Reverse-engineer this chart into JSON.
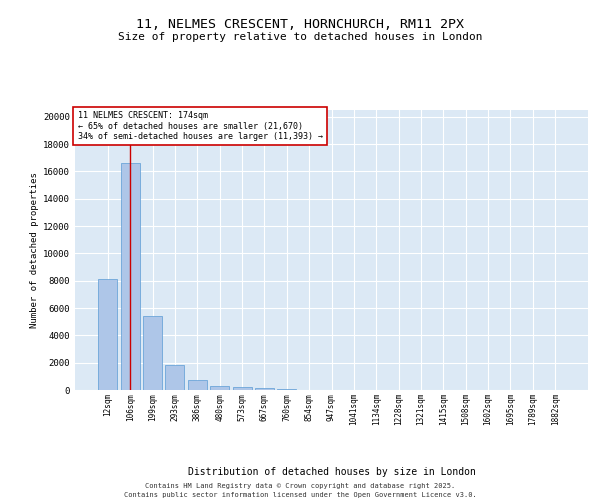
{
  "title_line1": "11, NELMES CRESCENT, HORNCHURCH, RM11 2PX",
  "title_line2": "Size of property relative to detached houses in London",
  "xlabel": "Distribution of detached houses by size in London",
  "ylabel": "Number of detached properties",
  "bar_color": "#aec6e8",
  "bar_edge_color": "#5b9bd5",
  "background_color": "#dce9f5",
  "grid_color": "#ffffff",
  "categories": [
    "12sqm",
    "106sqm",
    "199sqm",
    "293sqm",
    "386sqm",
    "480sqm",
    "573sqm",
    "667sqm",
    "760sqm",
    "854sqm",
    "947sqm",
    "1041sqm",
    "1134sqm",
    "1228sqm",
    "1321sqm",
    "1415sqm",
    "1508sqm",
    "1602sqm",
    "1695sqm",
    "1789sqm",
    "1882sqm"
  ],
  "values": [
    8100,
    16600,
    5400,
    1850,
    700,
    310,
    200,
    130,
    80,
    0,
    0,
    0,
    0,
    0,
    0,
    0,
    0,
    0,
    0,
    0,
    0
  ],
  "vline_x": 1.0,
  "vline_color": "#cc0000",
  "annotation_box": {
    "text_line1": "11 NELMES CRESCENT: 174sqm",
    "text_line2": "← 65% of detached houses are smaller (21,670)",
    "text_line3": "34% of semi-detached houses are larger (11,393) →",
    "box_color": "white",
    "border_color": "#cc0000"
  },
  "footer_line1": "Contains HM Land Registry data © Crown copyright and database right 2025.",
  "footer_line2": "Contains public sector information licensed under the Open Government Licence v3.0.",
  "ylim": [
    0,
    20500
  ],
  "yticks": [
    0,
    2000,
    4000,
    6000,
    8000,
    10000,
    12000,
    14000,
    16000,
    18000,
    20000
  ]
}
